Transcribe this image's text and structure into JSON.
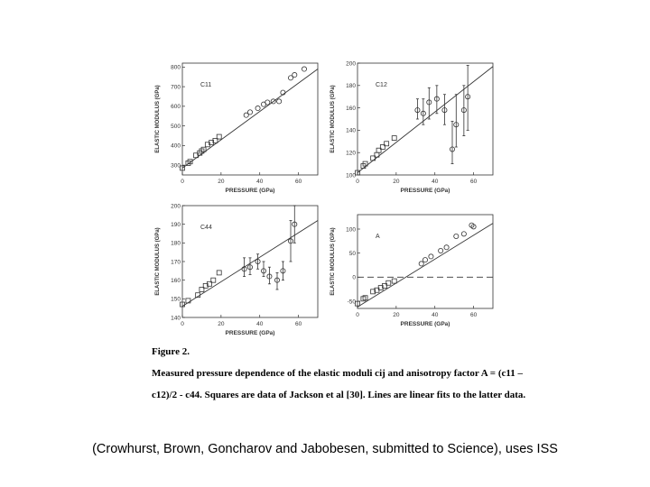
{
  "chart_data": [
    {
      "type": "scatter",
      "panel_label": "C11",
      "xlabel": "PRESSURE (GPa)",
      "ylabel": "ELASTIC MODULUS (GPa)",
      "xlim": [
        0,
        70
      ],
      "ylim": [
        250,
        820
      ],
      "xticks": [
        "0",
        "20",
        "40",
        "60"
      ],
      "yticks": [
        "300",
        "400",
        "500",
        "600",
        "700",
        "800"
      ],
      "ytick_values": [
        300,
        400,
        500,
        600,
        700,
        800
      ],
      "xtick_values": [
        0,
        20,
        40,
        60
      ],
      "fit_line": [
        [
          0,
          285
        ],
        [
          70,
          790
        ]
      ],
      "squares": [
        [
          0,
          285
        ],
        [
          3,
          310
        ],
        [
          4,
          318
        ],
        [
          7,
          350
        ],
        [
          9,
          362
        ],
        [
          10,
          372
        ],
        [
          11,
          380
        ],
        [
          13,
          405
        ],
        [
          15,
          415
        ],
        [
          17,
          425
        ],
        [
          19,
          445
        ]
      ],
      "circles": [
        [
          33,
          555
        ],
        [
          35,
          570
        ],
        [
          39,
          590
        ],
        [
          42,
          610
        ],
        [
          44,
          620
        ],
        [
          47,
          625
        ],
        [
          50,
          625
        ],
        [
          52,
          670
        ],
        [
          56,
          745
        ],
        [
          58,
          760
        ],
        [
          63,
          790
        ]
      ],
      "error_bars": [],
      "dashed_zero": false
    },
    {
      "type": "scatter",
      "panel_label": "C12",
      "xlabel": "PRESSURE (GPa)",
      "ylabel": "ELASTIC MODULUS (GPa)",
      "xlim": [
        0,
        70
      ],
      "ylim": [
        100,
        200
      ],
      "xticks": [
        "0",
        "20",
        "40",
        "60"
      ],
      "yticks": [
        "100",
        "120",
        "140",
        "160",
        "180",
        "200"
      ],
      "ytick_values": [
        100,
        120,
        140,
        160,
        180,
        200
      ],
      "xtick_values": [
        0,
        20,
        40,
        60
      ],
      "fit_line": [
        [
          0,
          102
        ],
        [
          70,
          197
        ]
      ],
      "squares": [
        [
          0,
          102
        ],
        [
          3,
          108
        ],
        [
          4,
          110
        ],
        [
          8,
          115
        ],
        [
          10,
          118
        ],
        [
          11,
          122
        ],
        [
          13,
          125
        ],
        [
          15,
          128
        ],
        [
          19,
          133
        ]
      ],
      "circles": [
        [
          31,
          158
        ],
        [
          34,
          155
        ],
        [
          37,
          165
        ],
        [
          41,
          168
        ],
        [
          45,
          158
        ],
        [
          49,
          123
        ],
        [
          51,
          145
        ],
        [
          55,
          158
        ],
        [
          57,
          170
        ]
      ],
      "error_bars": [
        [
          31,
          150,
          168
        ],
        [
          34,
          145,
          168
        ],
        [
          37,
          150,
          178
        ],
        [
          41,
          155,
          180
        ],
        [
          45,
          145,
          172
        ],
        [
          49,
          110,
          148
        ],
        [
          51,
          125,
          172
        ],
        [
          55,
          135,
          180
        ],
        [
          57,
          140,
          198
        ]
      ],
      "dashed_zero": false
    },
    {
      "type": "scatter",
      "panel_label": "C44",
      "xlabel": "PRESSURE (GPa)",
      "ylabel": "ELASTIC MODULUS (GPa)",
      "xlim": [
        0,
        70
      ],
      "ylim": [
        140,
        200
      ],
      "xticks": [
        "0",
        "20",
        "40",
        "60"
      ],
      "yticks": [
        "140",
        "150",
        "160",
        "170",
        "180",
        "190",
        "200"
      ],
      "ytick_values": [
        140,
        150,
        160,
        170,
        180,
        190,
        200
      ],
      "xtick_values": [
        0,
        20,
        40,
        60
      ],
      "fit_line": [
        [
          0,
          146
        ],
        [
          70,
          192
        ]
      ],
      "squares": [
        [
          0,
          147
        ],
        [
          3,
          149
        ],
        [
          8,
          152
        ],
        [
          10,
          155
        ],
        [
          12,
          157
        ],
        [
          14,
          158
        ],
        [
          16,
          160
        ],
        [
          19,
          164
        ]
      ],
      "circles": [
        [
          32,
          166
        ],
        [
          35,
          167
        ],
        [
          39,
          170
        ],
        [
          42,
          165
        ],
        [
          45,
          162
        ],
        [
          49,
          160
        ],
        [
          52,
          165
        ],
        [
          56,
          181
        ],
        [
          58,
          190
        ]
      ],
      "error_bars": [
        [
          32,
          162,
          172
        ],
        [
          35,
          163,
          172
        ],
        [
          39,
          166,
          174
        ],
        [
          42,
          162,
          170
        ],
        [
          45,
          158,
          167
        ],
        [
          49,
          155,
          164
        ],
        [
          52,
          160,
          170
        ],
        [
          56,
          170,
          192
        ],
        [
          58,
          180,
          200
        ]
      ],
      "dashed_zero": false
    },
    {
      "type": "scatter",
      "panel_label": "A",
      "xlabel": "PRESSURE (GPa)",
      "ylabel": "ELASTIC MODULUS (GPa)",
      "xlim": [
        0,
        70
      ],
      "ylim": [
        -65,
        130
      ],
      "xticks": [
        "0",
        "20",
        "40",
        "60"
      ],
      "yticks": [
        "-50",
        "0",
        "50",
        "100"
      ],
      "ytick_values": [
        -50,
        0,
        50,
        100
      ],
      "xtick_values": [
        0,
        20,
        40,
        60
      ],
      "fit_line": [
        [
          0,
          -62
        ],
        [
          70,
          112
        ]
      ],
      "squares": [
        [
          0,
          -55
        ],
        [
          3,
          -45
        ],
        [
          4,
          -43
        ],
        [
          8,
          -30
        ],
        [
          10,
          -27
        ],
        [
          12,
          -22
        ],
        [
          14,
          -18
        ],
        [
          16,
          -12
        ],
        [
          19,
          -8
        ]
      ],
      "circles": [
        [
          33,
          28
        ],
        [
          35,
          36
        ],
        [
          38,
          43
        ],
        [
          43,
          55
        ],
        [
          46,
          62
        ],
        [
          51,
          85
        ],
        [
          55,
          90
        ],
        [
          59,
          108
        ],
        [
          60,
          105
        ]
      ],
      "error_bars": [],
      "dashed_zero": true
    }
  ],
  "caption": {
    "figure_label": "Figure 2.",
    "line1": "Measured pressure dependence of the elastic moduli cij and anisotropy factor A = (c11 –",
    "line2": "c12)/2 - c44. Squares are data of Jackson et al [30]. Lines are linear fits to the latter data."
  },
  "credit": "(Crowhurst, Brown, Goncharov and Jabobesen, submitted to Science), uses ISS"
}
